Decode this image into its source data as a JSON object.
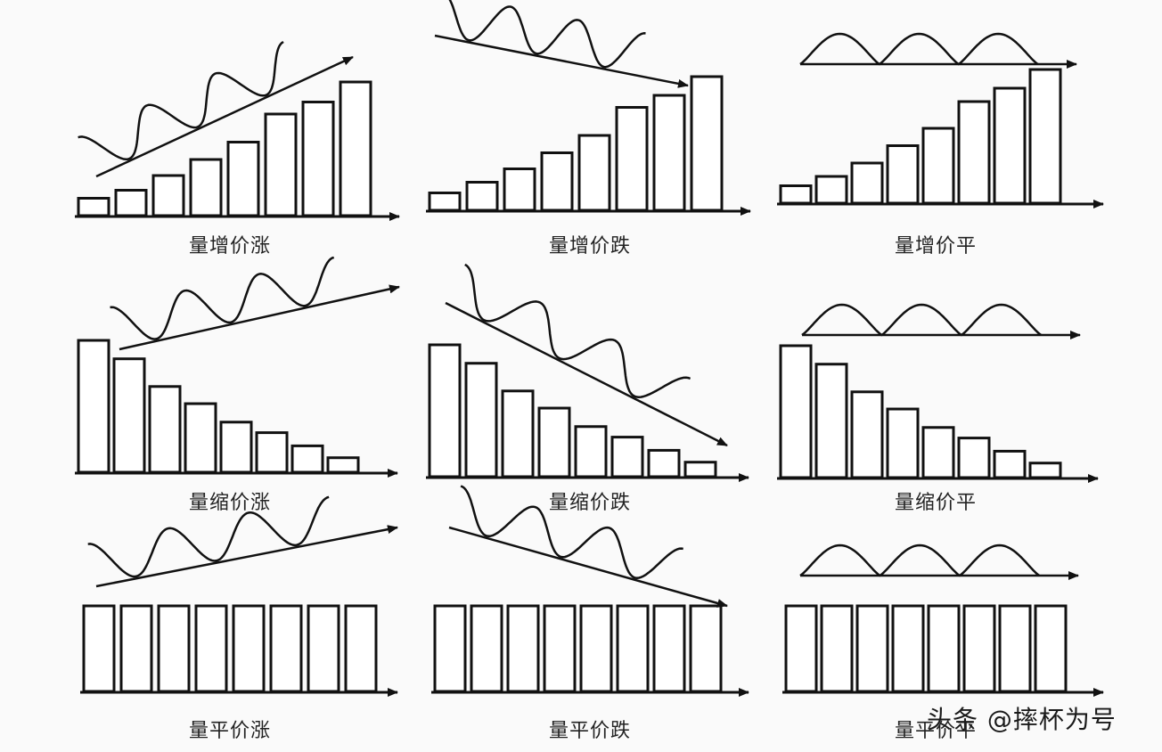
{
  "panels": [
    {
      "id": "p0",
      "caption": "量增价涨",
      "volume": [
        0.13,
        0.19,
        0.3,
        0.42,
        0.55,
        0.76,
        0.85,
        1.0
      ],
      "volume_trend": "increase",
      "price_trend": "up"
    },
    {
      "id": "p1",
      "caption": "量增价跌",
      "volume": [
        0.13,
        0.21,
        0.31,
        0.43,
        0.56,
        0.77,
        0.86,
        1.0
      ],
      "volume_trend": "increase",
      "price_trend": "down"
    },
    {
      "id": "p2",
      "caption": "量增价平",
      "volume": [
        0.13,
        0.2,
        0.3,
        0.43,
        0.56,
        0.76,
        0.86,
        1.0
      ],
      "volume_trend": "increase",
      "price_trend": "flat"
    },
    {
      "id": "p3",
      "caption": "量缩价涨",
      "volume": [
        1.0,
        0.86,
        0.65,
        0.52,
        0.38,
        0.3,
        0.2,
        0.11
      ],
      "volume_trend": "decrease",
      "price_trend": "up"
    },
    {
      "id": "p4",
      "caption": "量缩价跌",
      "volume": [
        1.0,
        0.86,
        0.65,
        0.52,
        0.38,
        0.3,
        0.2,
        0.11
      ],
      "volume_trend": "decrease",
      "price_trend": "down"
    },
    {
      "id": "p5",
      "caption": "量缩价平",
      "volume": [
        1.0,
        0.86,
        0.65,
        0.52,
        0.38,
        0.3,
        0.2,
        0.11
      ],
      "volume_trend": "decrease",
      "price_trend": "flat"
    },
    {
      "id": "p6",
      "caption": "量平价涨",
      "volume": [
        1,
        1,
        1,
        1,
        1,
        1,
        1,
        1
      ],
      "volume_trend": "flat",
      "price_trend": "up"
    },
    {
      "id": "p7",
      "caption": "量平价跌",
      "volume": [
        1,
        1,
        1,
        1,
        1,
        1,
        1,
        1
      ],
      "volume_trend": "flat",
      "price_trend": "down"
    },
    {
      "id": "p8",
      "caption": "量平价平",
      "volume": [
        1,
        1,
        1,
        1,
        1,
        1,
        1,
        1
      ],
      "volume_trend": "flat",
      "price_trend": "flat"
    }
  ],
  "watermark": "头条 @摔杯为号"
}
